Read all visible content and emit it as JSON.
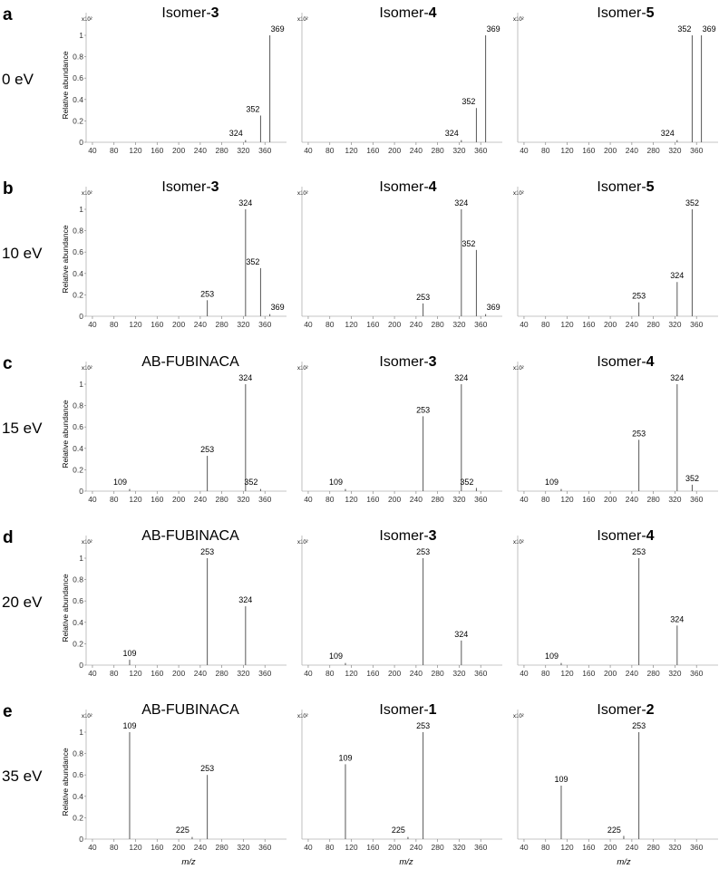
{
  "figure": {
    "ylabel": "Relative abundance",
    "xlabel": "m/z",
    "y_scale_label": "x10²"
  },
  "chart_data": [
    {
      "panel": "a",
      "energy": "0 eV",
      "plots": [
        {
          "title": "Isomer-",
          "title_num": "3",
          "type": "bar",
          "xlim": [
            30,
            400
          ],
          "xticks": [
            40,
            80,
            120,
            160,
            200,
            240,
            280,
            320,
            360
          ],
          "yticks": [
            "0",
            "0.2",
            "0.4",
            "0.6",
            "0.8",
            "1"
          ],
          "ylim": [
            0,
            1.05
          ],
          "peaks": [
            {
              "x": 324,
              "y": 0.02,
              "label": "324"
            },
            {
              "x": 352,
              "y": 0.25,
              "label": "352"
            },
            {
              "x": 369,
              "y": 1.0,
              "label": "369"
            }
          ]
        },
        {
          "title": "Isomer-",
          "title_num": "4",
          "type": "bar",
          "xlim": [
            30,
            400
          ],
          "xticks": [
            40,
            80,
            120,
            160,
            200,
            240,
            280,
            320,
            360
          ],
          "yticks": [],
          "ylim": [
            0,
            1.05
          ],
          "peaks": [
            {
              "x": 324,
              "y": 0.02,
              "label": "324"
            },
            {
              "x": 352,
              "y": 0.32,
              "label": "352"
            },
            {
              "x": 369,
              "y": 1.0,
              "label": "369"
            }
          ]
        },
        {
          "title": "Isomer-",
          "title_num": "5",
          "type": "bar",
          "xlim": [
            30,
            400
          ],
          "xticks": [
            40,
            80,
            120,
            160,
            200,
            240,
            280,
            320,
            360
          ],
          "yticks": [],
          "ylim": [
            0,
            1.05
          ],
          "peaks": [
            {
              "x": 324,
              "y": 0.02,
              "label": "324"
            },
            {
              "x": 352,
              "y": 1.0,
              "label": "352"
            },
            {
              "x": 369,
              "y": 1.0,
              "label": "369"
            }
          ]
        }
      ]
    },
    {
      "panel": "b",
      "energy": "10 eV",
      "plots": [
        {
          "title": "Isomer-",
          "title_num": "3",
          "type": "bar",
          "xlim": [
            30,
            400
          ],
          "xticks": [
            40,
            80,
            120,
            160,
            200,
            240,
            280,
            320,
            360
          ],
          "yticks": [
            "0",
            "0.2",
            "0.4",
            "0.6",
            "0.8",
            "1"
          ],
          "ylim": [
            0,
            1.05
          ],
          "peaks": [
            {
              "x": 253,
              "y": 0.15,
              "label": "253"
            },
            {
              "x": 324,
              "y": 1.0,
              "label": "324"
            },
            {
              "x": 352,
              "y": 0.45,
              "label": "352"
            },
            {
              "x": 369,
              "y": 0.02,
              "label": "369"
            }
          ]
        },
        {
          "title": "Isomer-",
          "title_num": "4",
          "type": "bar",
          "xlim": [
            30,
            400
          ],
          "xticks": [
            40,
            80,
            120,
            160,
            200,
            240,
            280,
            320,
            360
          ],
          "yticks": [],
          "ylim": [
            0,
            1.05
          ],
          "peaks": [
            {
              "x": 253,
              "y": 0.12,
              "label": "253"
            },
            {
              "x": 324,
              "y": 1.0,
              "label": "324"
            },
            {
              "x": 352,
              "y": 0.62,
              "label": "352"
            },
            {
              "x": 369,
              "y": 0.02,
              "label": "369"
            }
          ]
        },
        {
          "title": "Isomer-",
          "title_num": "5",
          "type": "bar",
          "xlim": [
            30,
            400
          ],
          "xticks": [
            40,
            80,
            120,
            160,
            200,
            240,
            280,
            320,
            360
          ],
          "yticks": [],
          "ylim": [
            0,
            1.05
          ],
          "peaks": [
            {
              "x": 253,
              "y": 0.13,
              "label": "253"
            },
            {
              "x": 324,
              "y": 0.32,
              "label": "324"
            },
            {
              "x": 352,
              "y": 1.0,
              "label": "352"
            }
          ]
        }
      ]
    },
    {
      "panel": "c",
      "energy": "15 eV",
      "plots": [
        {
          "title": "AB-FUBINACA",
          "title_num": "",
          "type": "bar",
          "xlim": [
            30,
            400
          ],
          "xticks": [
            40,
            80,
            120,
            160,
            200,
            240,
            280,
            320,
            360
          ],
          "yticks": [
            "0",
            "0.2",
            "0.4",
            "0.6",
            "0.8",
            "1"
          ],
          "ylim": [
            0,
            1.05
          ],
          "peaks": [
            {
              "x": 109,
              "y": 0.02,
              "label": "109"
            },
            {
              "x": 253,
              "y": 0.33,
              "label": "253"
            },
            {
              "x": 324,
              "y": 1.0,
              "label": "324"
            },
            {
              "x": 352,
              "y": 0.02,
              "label": "352"
            }
          ]
        },
        {
          "title": "Isomer-",
          "title_num": "3",
          "type": "bar",
          "xlim": [
            30,
            400
          ],
          "xticks": [
            40,
            80,
            120,
            160,
            200,
            240,
            280,
            320,
            360
          ],
          "yticks": [],
          "ylim": [
            0,
            1.05
          ],
          "peaks": [
            {
              "x": 109,
              "y": 0.02,
              "label": "109"
            },
            {
              "x": 253,
              "y": 0.7,
              "label": "253"
            },
            {
              "x": 324,
              "y": 1.0,
              "label": "324"
            },
            {
              "x": 352,
              "y": 0.03,
              "label": "352"
            }
          ]
        },
        {
          "title": "Isomer-",
          "title_num": "4",
          "type": "bar",
          "xlim": [
            30,
            400
          ],
          "xticks": [
            40,
            80,
            120,
            160,
            200,
            240,
            280,
            320,
            360
          ],
          "yticks": [],
          "ylim": [
            0,
            1.05
          ],
          "peaks": [
            {
              "x": 109,
              "y": 0.02,
              "label": "109"
            },
            {
              "x": 253,
              "y": 0.48,
              "label": "253"
            },
            {
              "x": 324,
              "y": 1.0,
              "label": "324"
            },
            {
              "x": 352,
              "y": 0.06,
              "label": "352"
            }
          ]
        }
      ]
    },
    {
      "panel": "d",
      "energy": "20 eV",
      "plots": [
        {
          "title": "AB-FUBINACA",
          "title_num": "",
          "type": "bar",
          "xlim": [
            30,
            400
          ],
          "xticks": [
            40,
            80,
            120,
            160,
            200,
            240,
            280,
            320,
            360
          ],
          "yticks": [
            "0",
            "0.2",
            "0.4",
            "0.6",
            "0.8",
            "1"
          ],
          "ylim": [
            0,
            1.05
          ],
          "peaks": [
            {
              "x": 109,
              "y": 0.05,
              "label": "109"
            },
            {
              "x": 253,
              "y": 1.0,
              "label": "253"
            },
            {
              "x": 324,
              "y": 0.55,
              "label": "324"
            }
          ]
        },
        {
          "title": "Isomer-",
          "title_num": "3",
          "type": "bar",
          "xlim": [
            30,
            400
          ],
          "xticks": [
            40,
            80,
            120,
            160,
            200,
            240,
            280,
            320,
            360
          ],
          "yticks": [],
          "ylim": [
            0,
            1.05
          ],
          "peaks": [
            {
              "x": 109,
              "y": 0.02,
              "label": "109"
            },
            {
              "x": 253,
              "y": 1.0,
              "label": "253"
            },
            {
              "x": 324,
              "y": 0.23,
              "label": "324"
            }
          ]
        },
        {
          "title": "Isomer-",
          "title_num": "4",
          "type": "bar",
          "xlim": [
            30,
            400
          ],
          "xticks": [
            40,
            80,
            120,
            160,
            200,
            240,
            280,
            320,
            360
          ],
          "yticks": [],
          "ylim": [
            0,
            1.05
          ],
          "peaks": [
            {
              "x": 109,
              "y": 0.02,
              "label": "109"
            },
            {
              "x": 253,
              "y": 1.0,
              "label": "253"
            },
            {
              "x": 324,
              "y": 0.37,
              "label": "324"
            }
          ]
        }
      ]
    },
    {
      "panel": "e",
      "energy": "35 eV",
      "plots": [
        {
          "title": "AB-FUBINACA",
          "title_num": "",
          "type": "bar",
          "xlim": [
            30,
            400
          ],
          "xticks": [
            40,
            80,
            120,
            160,
            200,
            240,
            280,
            320,
            360
          ],
          "yticks": [
            "0",
            "0.2",
            "0.4",
            "0.6",
            "0.8",
            "1"
          ],
          "ylim": [
            0,
            1.05
          ],
          "peaks": [
            {
              "x": 109,
              "y": 1.0,
              "label": "109"
            },
            {
              "x": 225,
              "y": 0.02,
              "label": "225"
            },
            {
              "x": 253,
              "y": 0.6,
              "label": "253"
            }
          ]
        },
        {
          "title": "Isomer-",
          "title_num": "1",
          "type": "bar",
          "xlim": [
            30,
            400
          ],
          "xticks": [
            40,
            80,
            120,
            160,
            200,
            240,
            280,
            320,
            360
          ],
          "yticks": [],
          "ylim": [
            0,
            1.05
          ],
          "peaks": [
            {
              "x": 109,
              "y": 0.7,
              "label": "109"
            },
            {
              "x": 225,
              "y": 0.02,
              "label": "225"
            },
            {
              "x": 253,
              "y": 1.0,
              "label": "253"
            }
          ]
        },
        {
          "title": "Isomer-",
          "title_num": "2",
          "type": "bar",
          "xlim": [
            30,
            400
          ],
          "xticks": [
            40,
            80,
            120,
            160,
            200,
            240,
            280,
            320,
            360
          ],
          "yticks": [],
          "ylim": [
            0,
            1.05
          ],
          "peaks": [
            {
              "x": 109,
              "y": 0.5,
              "label": "109"
            },
            {
              "x": 225,
              "y": 0.03,
              "label": "225"
            },
            {
              "x": 253,
              "y": 1.0,
              "label": "253"
            }
          ]
        }
      ]
    }
  ]
}
